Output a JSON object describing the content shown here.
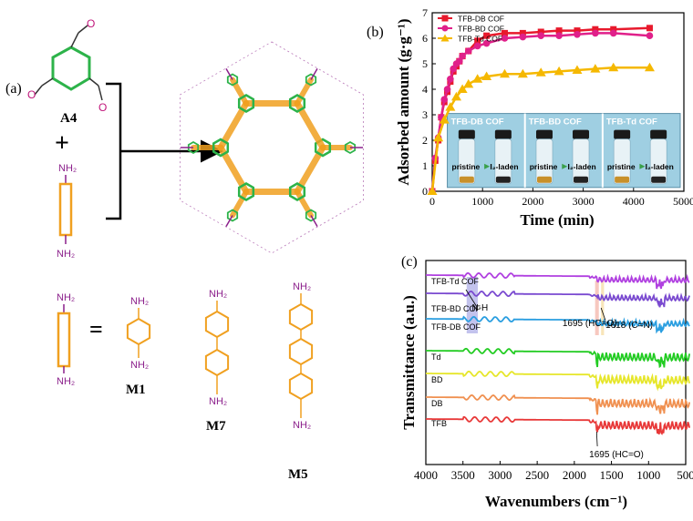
{
  "panel_labels": {
    "a": "(a)",
    "b": "(b)",
    "c": "(c)"
  },
  "scheme": {
    "aldehyde_label": "A4",
    "plus": "+",
    "equals": "=",
    "nh2": "NH₂",
    "monomers": [
      "M1",
      "M7",
      "M5"
    ],
    "colors": {
      "benzene": "#2db34a",
      "linker": "#f0a020",
      "amine": "#8b1f8b",
      "arrow": "#000000"
    }
  },
  "chart_data": [
    {
      "type": "line",
      "xlabel": "Time (min)",
      "ylabel": "Adsorbed amount (g·g⁻¹)",
      "xlim": [
        0,
        5000
      ],
      "ylim": [
        0,
        7
      ],
      "xticks": [
        0,
        1000,
        2000,
        3000,
        4000,
        5000
      ],
      "yticks": [
        0,
        1,
        2,
        3,
        4,
        5,
        6,
        7
      ],
      "legend_position": "top-left",
      "series": [
        {
          "name": "TFB-DB COF",
          "color": "#e8192c",
          "marker": "square",
          "x": [
            0,
            60,
            120,
            180,
            240,
            300,
            360,
            420,
            480,
            540,
            600,
            720,
            900,
            1080,
            1440,
            1800,
            2160,
            2520,
            2880,
            3240,
            3600,
            4320
          ],
          "y": [
            0,
            1.2,
            2.0,
            2.9,
            3.5,
            3.9,
            4.3,
            4.7,
            4.9,
            5.1,
            5.3,
            5.5,
            5.9,
            6.1,
            6.2,
            6.2,
            6.25,
            6.3,
            6.3,
            6.35,
            6.35,
            6.4
          ]
        },
        {
          "name": "TFB-BD COF",
          "color": "#e0208a",
          "marker": "circle",
          "x": [
            0,
            60,
            120,
            180,
            240,
            300,
            360,
            420,
            480,
            540,
            600,
            720,
            900,
            1080,
            1440,
            1800,
            2160,
            2520,
            2880,
            3240,
            3600,
            4320
          ],
          "y": [
            0,
            1.3,
            2.1,
            2.9,
            3.6,
            4.0,
            4.4,
            4.8,
            5.0,
            5.1,
            5.3,
            5.5,
            5.7,
            5.8,
            6.0,
            6.05,
            6.1,
            6.1,
            6.15,
            6.2,
            6.2,
            6.1
          ]
        },
        {
          "name": "TFB-Td COF",
          "color": "#f5b800",
          "marker": "triangle",
          "x": [
            0,
            120,
            240,
            360,
            480,
            600,
            720,
            900,
            1080,
            1440,
            1800,
            2160,
            2520,
            2880,
            3240,
            3600,
            4320
          ],
          "y": [
            0,
            2.1,
            2.8,
            3.3,
            3.7,
            4.0,
            4.2,
            4.4,
            4.5,
            4.6,
            4.6,
            4.65,
            4.7,
            4.75,
            4.8,
            4.85,
            4.85
          ]
        }
      ],
      "inset": {
        "titles": [
          "TFB-DB COF",
          "TFB-BD COF",
          "TFB-Td COF"
        ],
        "caption_left": "pristine",
        "caption_right": "I₂-laden",
        "background": "#9fcfe2"
      }
    },
    {
      "type": "line",
      "xlabel": "Wavenumbers (cm⁻¹)",
      "ylabel": "Transmittance (a.u.)",
      "xlim": [
        4000,
        500
      ],
      "xticks": [
        4000,
        3500,
        3000,
        2500,
        2000,
        1500,
        1000,
        500
      ],
      "series": [
        {
          "name": "TFB-Td COF",
          "color": "#b040e0"
        },
        {
          "name": "TFB-BD COF",
          "color": "#7a4ad0"
        },
        {
          "name": "TFB-DB COF",
          "color": "#2a9ee0"
        },
        {
          "name": "Td",
          "color": "#22cc22"
        },
        {
          "name": "BD",
          "color": "#e6e62a"
        },
        {
          "name": "DB",
          "color": "#f09050"
        },
        {
          "name": "TFB",
          "color": "#e83838"
        }
      ],
      "annotations": [
        "N-H",
        "1695 (HC=O)",
        "1618 (C=N)",
        "1695 (HC=O)"
      ]
    }
  ]
}
